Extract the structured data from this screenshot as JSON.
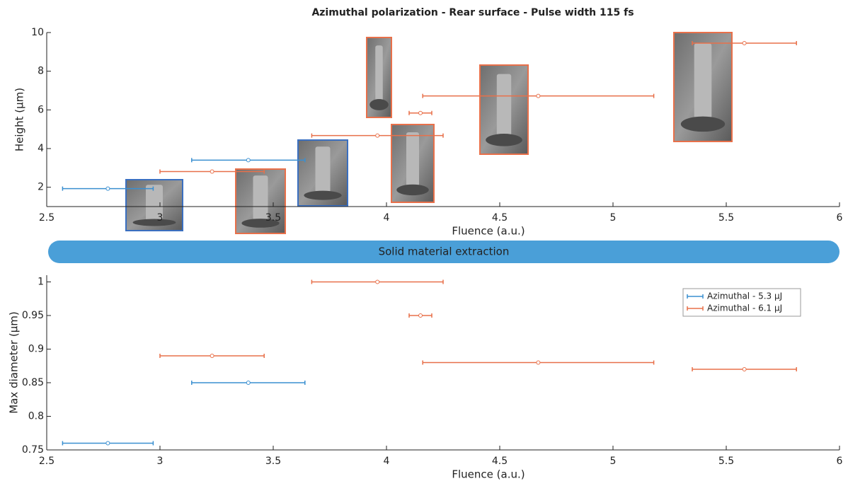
{
  "banner": {
    "text": "Solid material extraction"
  },
  "chart_data": [
    {
      "type": "errorbar",
      "title": "Azimuthal polarization - Rear surface - Pulse width 115 fs",
      "xlabel": "Fluence (a.u.)",
      "ylabel": "Height (µm)",
      "xlim": [
        2.5,
        6
      ],
      "xticks": [
        2.5,
        3,
        3.5,
        4,
        4.5,
        5,
        5.5,
        6
      ],
      "ylim": [
        1,
        10
      ],
      "yticks": [
        2,
        4,
        6,
        8,
        10
      ],
      "series": [
        {
          "color": "#3a8fd0",
          "x": [
            2.77,
            3.39
          ],
          "xerr": [
            0.2,
            0.25
          ],
          "values": [
            1.93,
            3.4
          ]
        },
        {
          "color": "#e8704a",
          "x": [
            3.23,
            3.96,
            4.15,
            4.67,
            5.58
          ],
          "xerr": [
            0.23,
            0.29,
            0.05,
            0.51,
            0.23
          ],
          "values": [
            2.81,
            4.67,
            5.84,
            6.72,
            9.45
          ]
        }
      ]
    },
    {
      "type": "errorbar",
      "xlabel": "Fluence (a.u.)",
      "ylabel": "Max diameter (µm)",
      "xlim": [
        2.5,
        6
      ],
      "xticks": [
        2.5,
        3,
        3.5,
        4,
        4.5,
        5,
        5.5,
        6
      ],
      "ylim": [
        0.75,
        1.01
      ],
      "yticks": [
        0.75,
        0.8,
        0.85,
        0.9,
        0.95,
        1
      ],
      "legend": "upper right",
      "series": [
        {
          "name": "Azimuthal - 5.3 µJ",
          "color": "#3a8fd0",
          "x": [
            2.77,
            3.39
          ],
          "xerr": [
            0.2,
            0.25
          ],
          "values": [
            0.76,
            0.85
          ]
        },
        {
          "name": "Azimuthal - 6.1 µJ",
          "color": "#e8704a",
          "x": [
            3.23,
            3.96,
            4.15,
            4.67,
            5.58
          ],
          "xerr": [
            0.23,
            0.29,
            0.05,
            0.51,
            0.23
          ],
          "values": [
            0.89,
            1.0,
            0.95,
            0.88,
            0.87
          ]
        }
      ]
    }
  ]
}
